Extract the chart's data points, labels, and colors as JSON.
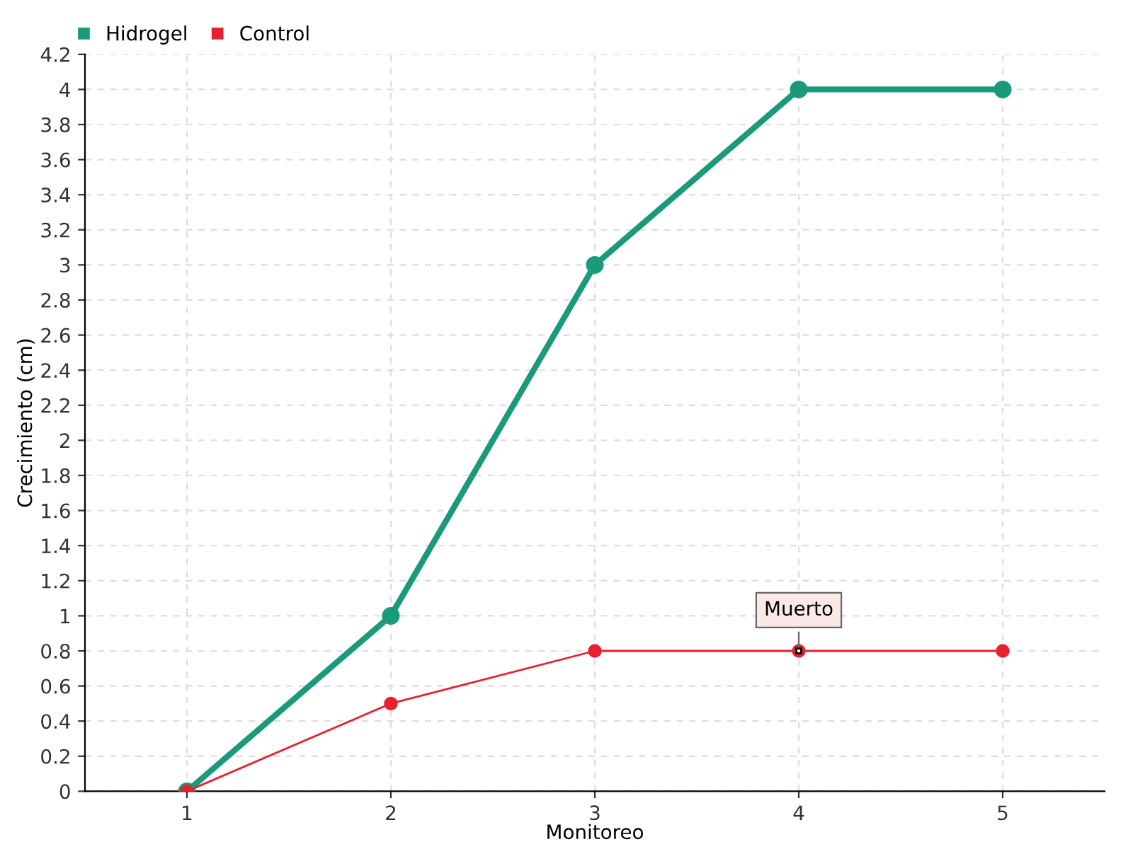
{
  "chart_data": {
    "type": "line",
    "xlabel": "Monitoreo",
    "ylabel": "Crecimiento (cm)",
    "x": [
      1,
      2,
      3,
      4,
      5
    ],
    "series": [
      {
        "name": "Hidrogel",
        "color": "#1a9a7a",
        "values": [
          0,
          1,
          3,
          4,
          4
        ]
      },
      {
        "name": "Control",
        "color": "#e8212e",
        "values": [
          0,
          0.5,
          0.8,
          0.8,
          0.8
        ]
      }
    ],
    "xlim": [
      0.5,
      5.5
    ],
    "xticks": [
      1,
      2,
      3,
      4,
      5
    ],
    "ylim": [
      0,
      4.2
    ],
    "yticks": [
      0,
      0.2,
      0.4,
      0.6,
      0.8,
      1,
      1.2,
      1.4,
      1.6,
      1.8,
      2,
      2.2,
      2.4,
      2.6,
      2.8,
      3,
      3.2,
      3.4,
      3.6,
      3.8,
      4,
      4.2
    ],
    "annotations": [
      {
        "text": "Muerto",
        "x": 4,
        "y": 0.8
      }
    ],
    "grid": true,
    "legend": "top left",
    "marker": "circle",
    "line_style": "solid"
  }
}
